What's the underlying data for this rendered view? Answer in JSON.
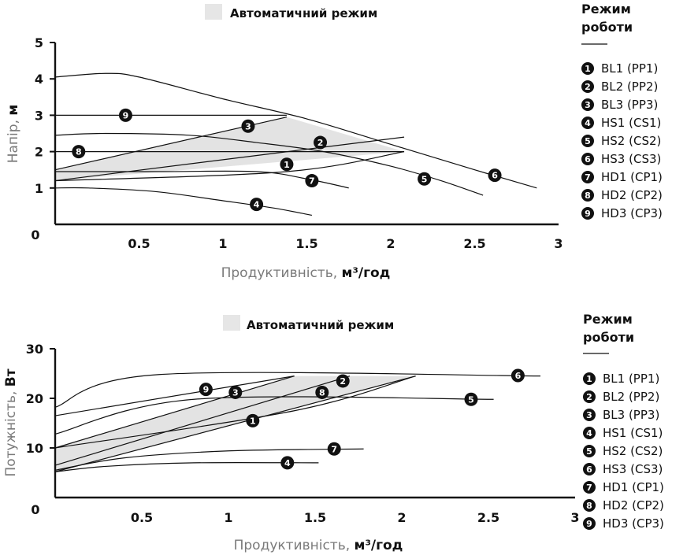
{
  "chart_data": [
    {
      "type": "line",
      "title": "Автоматичний режим",
      "xlabel": "Продуктивність, ",
      "xlabel_unit": "м³/год",
      "ylabel": "Напір, ",
      "ylabel_unit": "м",
      "xlim": [
        0,
        3
      ],
      "ylim": [
        0,
        5
      ],
      "xticks": [
        "0.5",
        "1",
        "1.5",
        "2",
        "2.5",
        "3"
      ],
      "yticks": [
        "1",
        "2",
        "3",
        "4",
        "5"
      ],
      "origin_label": "0",
      "legend_title_lines": [
        "Режим",
        "роботи"
      ],
      "legend": [
        {
          "num": "1",
          "label": "BL1 (PP1)"
        },
        {
          "num": "2",
          "label": "BL2 (PP2)"
        },
        {
          "num": "3",
          "label": "BL3 (PP3)"
        },
        {
          "num": "4",
          "label": "HS1 (CS1)"
        },
        {
          "num": "5",
          "label": "HS2 (CS2)"
        },
        {
          "num": "6",
          "label": "HS3 (CS3)"
        },
        {
          "num": "7",
          "label": "HD1 (CP1)"
        },
        {
          "num": "8",
          "label": "HD2 (CP2)"
        },
        {
          "num": "9",
          "label": "HD3 (CP3)"
        }
      ],
      "auto_region": {
        "x": [
          0,
          1.38,
          2.08,
          0
        ],
        "y": [
          1.5,
          2.95,
          2.0,
          1.2
        ]
      },
      "curves": [
        {
          "id": "HS3",
          "x": [
            0,
            0.3,
            0.5,
            1.0,
            1.5,
            2.0,
            2.5,
            2.87
          ],
          "y": [
            4.05,
            4.15,
            4.05,
            3.45,
            2.9,
            2.2,
            1.5,
            1.0
          ]
        },
        {
          "id": "HS2",
          "x": [
            0,
            0.3,
            0.8,
            1.2,
            1.6,
            2.0,
            2.3,
            2.55
          ],
          "y": [
            2.45,
            2.5,
            2.45,
            2.25,
            2.0,
            1.6,
            1.2,
            0.8
          ]
        },
        {
          "id": "HS1",
          "x": [
            0,
            0.2,
            0.6,
            1.0,
            1.3,
            1.53
          ],
          "y": [
            1.0,
            1.0,
            0.9,
            0.65,
            0.45,
            0.25
          ]
        },
        {
          "id": "HD1",
          "x": [
            0,
            0.6,
            1.2,
            1.5,
            1.75
          ],
          "y": [
            1.45,
            1.45,
            1.45,
            1.25,
            1.0
          ]
        },
        {
          "id": "HD2",
          "x": [
            0,
            2.08
          ],
          "y": [
            2.0,
            2.0
          ]
        },
        {
          "id": "HD3",
          "x": [
            0,
            1.38
          ],
          "y": [
            3.0,
            3.0
          ]
        },
        {
          "id": "PP-low",
          "x": [
            0,
            1.38,
            2.08
          ],
          "y": [
            1.2,
            1.45,
            2.0
          ]
        },
        {
          "id": "PP2",
          "x": [
            0,
            2.08
          ],
          "y": [
            1.2,
            2.4
          ]
        },
        {
          "id": "PP3",
          "x": [
            0,
            1.38
          ],
          "y": [
            1.5,
            2.95
          ]
        }
      ],
      "markers": [
        {
          "num": "1",
          "x": 1.38,
          "y": 1.65
        },
        {
          "num": "2",
          "x": 1.58,
          "y": 2.25
        },
        {
          "num": "3",
          "x": 1.15,
          "y": 2.7
        },
        {
          "num": "4",
          "x": 1.2,
          "y": 0.55
        },
        {
          "num": "5",
          "x": 2.2,
          "y": 1.25
        },
        {
          "num": "6",
          "x": 2.62,
          "y": 1.35
        },
        {
          "num": "7",
          "x": 1.53,
          "y": 1.2
        },
        {
          "num": "8",
          "x": 0.14,
          "y": 2.0
        },
        {
          "num": "9",
          "x": 0.42,
          "y": 3.0
        }
      ]
    },
    {
      "type": "line",
      "title": "Автоматичний режим",
      "xlabel": "Продуктивність, ",
      "xlabel_unit": "м³/год",
      "ylabel": "Потужність, ",
      "ylabel_unit": "Вт",
      "xlim": [
        0,
        3
      ],
      "ylim": [
        0,
        30
      ],
      "xticks": [
        "0.5",
        "1",
        "1.5",
        "2",
        "2.5",
        "3"
      ],
      "yticks": [
        "10",
        "20",
        "30"
      ],
      "origin_label": "0",
      "legend_title_lines": [
        "Режим",
        "роботи"
      ],
      "legend": [
        {
          "num": "1",
          "label": "BL1 (PP1)"
        },
        {
          "num": "2",
          "label": "BL2 (PP2)"
        },
        {
          "num": "3",
          "label": "BL3 (PP3)"
        },
        {
          "num": "4",
          "label": "HS1 (CS1)"
        },
        {
          "num": "5",
          "label": "HS2 (CS2)"
        },
        {
          "num": "6",
          "label": "HS3 (CS3)"
        },
        {
          "num": "7",
          "label": "HD1 (CP1)"
        },
        {
          "num": "8",
          "label": "HD2 (CP2)"
        },
        {
          "num": "9",
          "label": "HD3 (CP3)"
        }
      ],
      "auto_region": {
        "x": [
          0,
          1.38,
          2.08,
          0
        ],
        "y": [
          10,
          24.5,
          24.5,
          5.2
        ]
      },
      "curves": [
        {
          "id": "HS3",
          "x": [
            0,
            0.6,
            2.8
          ],
          "y": [
            18.2,
            24.8,
            24.5
          ]
        },
        {
          "id": "HS2",
          "x": [
            0,
            0.8,
            2.53
          ],
          "y": [
            12.8,
            19.8,
            19.8
          ]
        },
        {
          "id": "HS1",
          "x": [
            0,
            0.3,
            0.8,
            1.52
          ],
          "y": [
            5.2,
            6.3,
            7.0,
            7.0
          ]
        },
        {
          "id": "HD1",
          "x": [
            0,
            0.4,
            1.0,
            1.78
          ],
          "y": [
            5.5,
            8.0,
            9.4,
            9.8
          ]
        },
        {
          "id": "HD2",
          "x": [
            0,
            2.08
          ],
          "y": [
            5.2,
            24.5
          ]
        },
        {
          "id": "HD3",
          "x": [
            0,
            1.38
          ],
          "y": [
            10,
            24.5
          ]
        },
        {
          "id": "PP1",
          "x": [
            0,
            1.38,
            2.08
          ],
          "y": [
            10,
            17.5,
            24.5
          ]
        },
        {
          "id": "PP2",
          "x": [
            0,
            1.7
          ],
          "y": [
            6.5,
            24.5
          ]
        },
        {
          "id": "PP3",
          "x": [
            0,
            1.38
          ],
          "y": [
            16.5,
            24.5
          ]
        }
      ],
      "markers": [
        {
          "num": "1",
          "x": 1.14,
          "y": 15.5
        },
        {
          "num": "2",
          "x": 1.66,
          "y": 23.5
        },
        {
          "num": "3",
          "x": 1.04,
          "y": 21.2
        },
        {
          "num": "4",
          "x": 1.34,
          "y": 7.0
        },
        {
          "num": "5",
          "x": 2.4,
          "y": 19.8
        },
        {
          "num": "6",
          "x": 2.67,
          "y": 24.6
        },
        {
          "num": "7",
          "x": 1.61,
          "y": 9.8
        },
        {
          "num": "8",
          "x": 1.54,
          "y": 21.2
        },
        {
          "num": "9",
          "x": 0.87,
          "y": 21.8
        }
      ]
    }
  ]
}
